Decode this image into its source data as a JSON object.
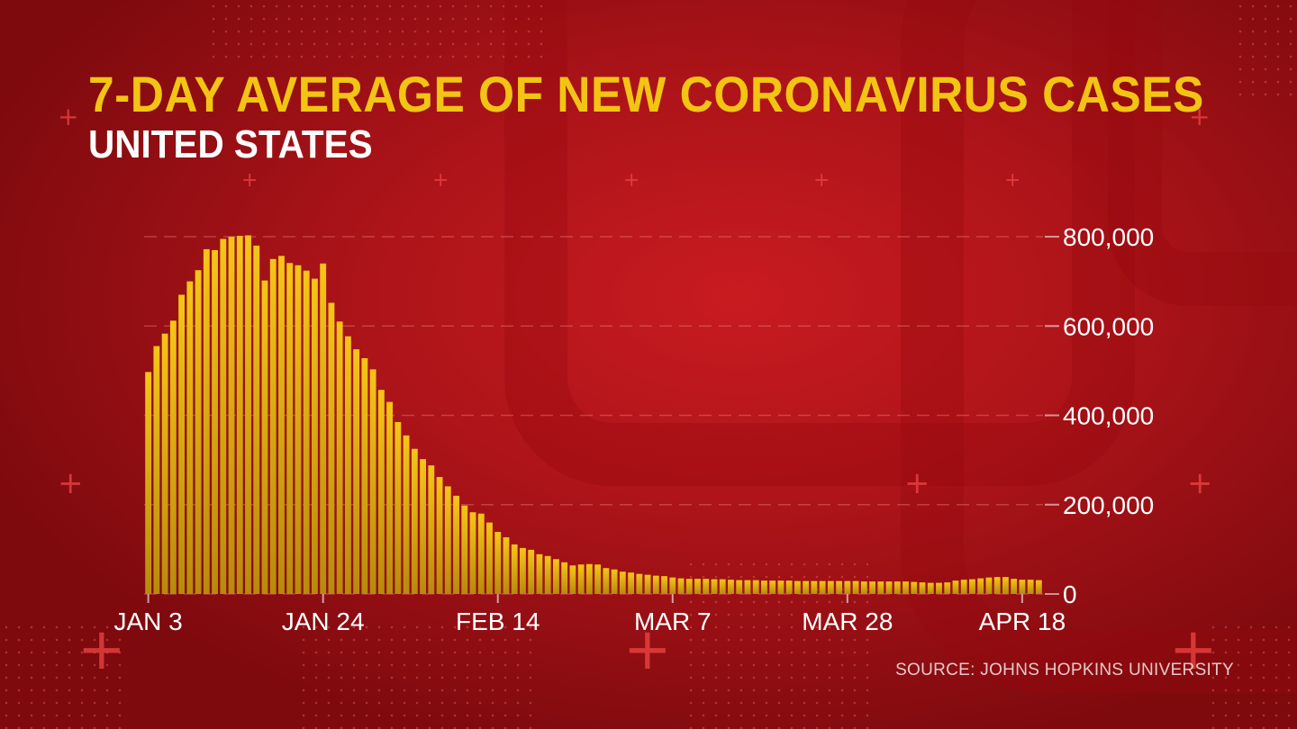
{
  "title": "7-DAY AVERAGE OF NEW CORONAVIRUS CASES",
  "subtitle": "UNITED STATES",
  "source": "SOURCE: JOHNS HOPKINS UNIVERSITY",
  "colors": {
    "bar_top": "#f5c518",
    "bar_bottom": "#b88a0c",
    "title": "#f2c413",
    "subtitle": "#ffffff",
    "background": "#b3151a"
  },
  "chart_data": {
    "type": "bar",
    "title": "7-DAY AVERAGE OF NEW CORONAVIRUS CASES",
    "subtitle": "UNITED STATES",
    "xlabel": "",
    "ylabel": "",
    "ylim": [
      0,
      800000
    ],
    "y_ticks": [
      0,
      200000,
      400000,
      600000,
      800000
    ],
    "y_tick_labels": [
      "0",
      "200,000",
      "400,000",
      "600,000",
      "800,000"
    ],
    "x_tick_labels": [
      "JAN 3",
      "JAN 24",
      "FEB 14",
      "MAR 7",
      "MAR 28",
      "APR 18"
    ],
    "x_tick_index": [
      0,
      21,
      42,
      63,
      84,
      105
    ],
    "grid": true,
    "y_axis_position": "right",
    "values": [
      497000,
      555000,
      583000,
      612000,
      670000,
      700000,
      725000,
      772000,
      770000,
      795000,
      800000,
      802000,
      803000,
      780000,
      702000,
      750000,
      757000,
      741000,
      736000,
      724000,
      706000,
      740000,
      652000,
      610000,
      577000,
      548000,
      528000,
      503000,
      457000,
      430000,
      385000,
      355000,
      325000,
      302000,
      288000,
      262000,
      241000,
      220000,
      198000,
      183000,
      180000,
      160000,
      139000,
      127000,
      111000,
      103000,
      99000,
      89000,
      85000,
      78000,
      71000,
      64000,
      66000,
      67000,
      66000,
      58000,
      55000,
      50000,
      48000,
      45000,
      43000,
      41000,
      40000,
      37000,
      35000,
      34000,
      34000,
      34000,
      33000,
      33000,
      32000,
      31000,
      31000,
      31000,
      30000,
      30000,
      30000,
      30000,
      29000,
      29000,
      29000,
      29000,
      29000,
      29000,
      29000,
      29000,
      28000,
      28000,
      28000,
      28000,
      28000,
      28000,
      27000,
      26000,
      25000,
      25000,
      26000,
      30000,
      32000,
      33000,
      35000,
      37000,
      38000,
      38000,
      34000,
      32000,
      32000,
      31000
    ]
  }
}
